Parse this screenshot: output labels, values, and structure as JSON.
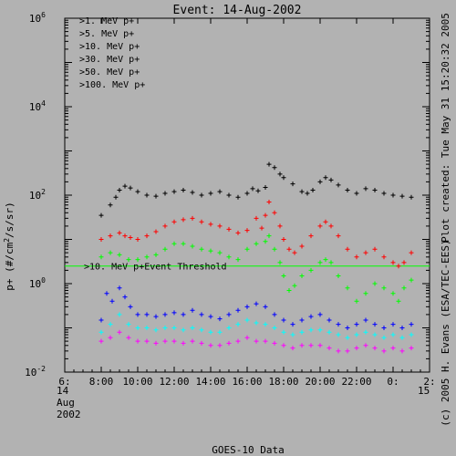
{
  "chart_data": {
    "type": "scatter",
    "title": "Event: 14-Aug-2002",
    "ylabel_main": "p+ (#/cm",
    "ylabel_sup": "2",
    "ylabel_tail": "/s/sr)",
    "bottom_label": "GOES-10 Data",
    "right_label_plot": "Plot created: Tue May 31 15:20:32 2005",
    "right_label_copyright": "(c) 2005 H. Evans (ESA/TEC-EES)",
    "date_labels": {
      "day1": "14",
      "month": "Aug",
      "year": "2002",
      "day2": "15"
    },
    "x_axis": {
      "unit": "hour",
      "min": 6,
      "max": 26,
      "ticks": [
        6,
        8,
        10,
        12,
        14,
        16,
        18,
        20,
        22,
        24,
        26
      ],
      "tick_labels": [
        "6:",
        "8:00",
        "10:00",
        "12:00",
        "14:00",
        "16:00",
        "18:00",
        "20:00",
        "22:00",
        "0:",
        "2:"
      ]
    },
    "y_axis": {
      "scale": "log",
      "min": 0.01,
      "max": 1000000,
      "tick_labels": [
        {
          "base": "10",
          "exp": "-2",
          "value": 0.01
        },
        {
          "base": "10",
          "exp": "0",
          "value": 1
        },
        {
          "base": "10",
          "exp": "2",
          "value": 100
        },
        {
          "base": "10",
          "exp": "4",
          "value": 10000
        },
        {
          "base": "10",
          "exp": "6",
          "value": 1000000
        }
      ]
    },
    "threshold": {
      "label": ">10. MeV p+Event Threshold",
      "value": 2.5,
      "color": "#00ff00"
    },
    "series": [
      {
        "name": ">1. MeV p+",
        "color": "#000000",
        "points": [
          [
            8,
            35
          ],
          [
            8.5,
            60
          ],
          [
            8.8,
            90
          ],
          [
            9,
            130
          ],
          [
            9.3,
            160
          ],
          [
            9.6,
            145
          ],
          [
            10,
            120
          ],
          [
            10.5,
            100
          ],
          [
            11,
            95
          ],
          [
            11.5,
            110
          ],
          [
            12,
            120
          ],
          [
            12.5,
            130
          ],
          [
            13,
            115
          ],
          [
            13.5,
            100
          ],
          [
            14,
            110
          ],
          [
            14.5,
            120
          ],
          [
            15,
            100
          ],
          [
            15.5,
            90
          ],
          [
            16,
            110
          ],
          [
            16.3,
            140
          ],
          [
            16.6,
            125
          ],
          [
            17,
            150
          ],
          [
            17.2,
            500
          ],
          [
            17.5,
            420
          ],
          [
            17.8,
            300
          ],
          [
            18,
            250
          ],
          [
            18.5,
            180
          ],
          [
            19,
            120
          ],
          [
            19.3,
            110
          ],
          [
            19.6,
            130
          ],
          [
            20,
            200
          ],
          [
            20.3,
            250
          ],
          [
            20.6,
            220
          ],
          [
            21,
            170
          ],
          [
            21.5,
            130
          ],
          [
            22,
            110
          ],
          [
            22.5,
            140
          ],
          [
            23,
            130
          ],
          [
            23.5,
            110
          ],
          [
            24,
            100
          ],
          [
            24.5,
            95
          ],
          [
            25,
            90
          ]
        ]
      },
      {
        "name": ">5. MeV p+",
        "color": "#ff0000",
        "points": [
          [
            8,
            10
          ],
          [
            8.5,
            12
          ],
          [
            9,
            14
          ],
          [
            9.3,
            12
          ],
          [
            9.6,
            11
          ],
          [
            10,
            10
          ],
          [
            10.5,
            12
          ],
          [
            11,
            15
          ],
          [
            11.5,
            20
          ],
          [
            12,
            25
          ],
          [
            12.5,
            28
          ],
          [
            13,
            30
          ],
          [
            13.5,
            25
          ],
          [
            14,
            22
          ],
          [
            14.5,
            20
          ],
          [
            15,
            17
          ],
          [
            15.5,
            14
          ],
          [
            16,
            16
          ],
          [
            16.5,
            30
          ],
          [
            16.8,
            18
          ],
          [
            17,
            35
          ],
          [
            17.2,
            70
          ],
          [
            17.5,
            40
          ],
          [
            17.8,
            20
          ],
          [
            18,
            10
          ],
          [
            18.3,
            6
          ],
          [
            18.6,
            5
          ],
          [
            19,
            7
          ],
          [
            19.5,
            12
          ],
          [
            20,
            20
          ],
          [
            20.3,
            25
          ],
          [
            20.6,
            20
          ],
          [
            21,
            12
          ],
          [
            21.5,
            6
          ],
          [
            22,
            4
          ],
          [
            22.5,
            5
          ],
          [
            23,
            6
          ],
          [
            23.5,
            4
          ],
          [
            24,
            3
          ],
          [
            24.3,
            2.5
          ],
          [
            24.6,
            3
          ],
          [
            25,
            5
          ]
        ]
      },
      {
        "name": ">10. MeV p+",
        "color": "#00ff00",
        "points": [
          [
            8,
            4
          ],
          [
            8.5,
            5
          ],
          [
            9,
            4.5
          ],
          [
            9.5,
            3.5
          ],
          [
            10,
            3.5
          ],
          [
            10.5,
            4
          ],
          [
            11,
            4.5
          ],
          [
            11.5,
            6
          ],
          [
            12,
            8
          ],
          [
            12.5,
            8
          ],
          [
            13,
            7
          ],
          [
            13.5,
            6
          ],
          [
            14,
            5.5
          ],
          [
            14.5,
            5
          ],
          [
            15,
            4
          ],
          [
            15.5,
            3.5
          ],
          [
            16,
            6
          ],
          [
            16.5,
            8
          ],
          [
            17,
            9
          ],
          [
            17.2,
            12
          ],
          [
            17.5,
            6
          ],
          [
            17.8,
            3
          ],
          [
            18,
            1.5
          ],
          [
            18.3,
            0.7
          ],
          [
            18.6,
            0.9
          ],
          [
            19,
            1.5
          ],
          [
            19.5,
            2
          ],
          [
            20,
            3
          ],
          [
            20.3,
            3.5
          ],
          [
            20.6,
            3
          ],
          [
            21,
            1.5
          ],
          [
            21.5,
            0.8
          ],
          [
            22,
            0.4
          ],
          [
            22.5,
            0.6
          ],
          [
            23,
            1
          ],
          [
            23.5,
            0.8
          ],
          [
            24,
            0.6
          ],
          [
            24.3,
            0.4
          ],
          [
            24.6,
            0.8
          ],
          [
            25,
            1.2
          ]
        ]
      },
      {
        "name": ">30. MeV p+",
        "color": "#0000ff",
        "points": [
          [
            8,
            0.15
          ],
          [
            8.3,
            0.6
          ],
          [
            8.6,
            0.4
          ],
          [
            9,
            0.8
          ],
          [
            9.3,
            0.5
          ],
          [
            9.6,
            0.3
          ],
          [
            10,
            0.2
          ],
          [
            10.5,
            0.2
          ],
          [
            11,
            0.18
          ],
          [
            11.5,
            0.2
          ],
          [
            12,
            0.22
          ],
          [
            12.5,
            0.2
          ],
          [
            13,
            0.25
          ],
          [
            13.5,
            0.2
          ],
          [
            14,
            0.18
          ],
          [
            14.5,
            0.16
          ],
          [
            15,
            0.2
          ],
          [
            15.5,
            0.25
          ],
          [
            16,
            0.3
          ],
          [
            16.5,
            0.35
          ],
          [
            17,
            0.3
          ],
          [
            17.5,
            0.2
          ],
          [
            18,
            0.15
          ],
          [
            18.5,
            0.12
          ],
          [
            19,
            0.15
          ],
          [
            19.5,
            0.18
          ],
          [
            20,
            0.2
          ],
          [
            20.5,
            0.15
          ],
          [
            21,
            0.12
          ],
          [
            21.5,
            0.1
          ],
          [
            22,
            0.12
          ],
          [
            22.5,
            0.15
          ],
          [
            23,
            0.12
          ],
          [
            23.5,
            0.1
          ],
          [
            24,
            0.12
          ],
          [
            24.5,
            0.1
          ],
          [
            25,
            0.12
          ]
        ]
      },
      {
        "name": ">50. MeV p+",
        "color": "#00ffff",
        "points": [
          [
            8,
            0.08
          ],
          [
            8.5,
            0.12
          ],
          [
            9,
            0.2
          ],
          [
            9.5,
            0.12
          ],
          [
            10,
            0.1
          ],
          [
            10.5,
            0.1
          ],
          [
            11,
            0.09
          ],
          [
            11.5,
            0.1
          ],
          [
            12,
            0.1
          ],
          [
            12.5,
            0.09
          ],
          [
            13,
            0.1
          ],
          [
            13.5,
            0.09
          ],
          [
            14,
            0.08
          ],
          [
            14.5,
            0.08
          ],
          [
            15,
            0.1
          ],
          [
            15.5,
            0.12
          ],
          [
            16,
            0.15
          ],
          [
            16.5,
            0.13
          ],
          [
            17,
            0.12
          ],
          [
            17.5,
            0.1
          ],
          [
            18,
            0.08
          ],
          [
            18.5,
            0.07
          ],
          [
            19,
            0.08
          ],
          [
            19.5,
            0.09
          ],
          [
            20,
            0.09
          ],
          [
            20.5,
            0.08
          ],
          [
            21,
            0.07
          ],
          [
            21.5,
            0.06
          ],
          [
            22,
            0.07
          ],
          [
            22.5,
            0.08
          ],
          [
            23,
            0.07
          ],
          [
            23.5,
            0.06
          ],
          [
            24,
            0.07
          ],
          [
            24.5,
            0.06
          ],
          [
            25,
            0.07
          ]
        ]
      },
      {
        "name": ">100. MeV p+",
        "color": "#ff00ff",
        "points": [
          [
            8,
            0.05
          ],
          [
            8.5,
            0.06
          ],
          [
            9,
            0.08
          ],
          [
            9.5,
            0.06
          ],
          [
            10,
            0.05
          ],
          [
            10.5,
            0.05
          ],
          [
            11,
            0.045
          ],
          [
            11.5,
            0.05
          ],
          [
            12,
            0.05
          ],
          [
            12.5,
            0.045
          ],
          [
            13,
            0.05
          ],
          [
            13.5,
            0.045
          ],
          [
            14,
            0.04
          ],
          [
            14.5,
            0.04
          ],
          [
            15,
            0.045
          ],
          [
            15.5,
            0.05
          ],
          [
            16,
            0.06
          ],
          [
            16.5,
            0.05
          ],
          [
            17,
            0.05
          ],
          [
            17.5,
            0.045
          ],
          [
            18,
            0.04
          ],
          [
            18.5,
            0.035
          ],
          [
            19,
            0.04
          ],
          [
            19.5,
            0.04
          ],
          [
            20,
            0.04
          ],
          [
            20.5,
            0.035
          ],
          [
            21,
            0.03
          ],
          [
            21.5,
            0.03
          ],
          [
            22,
            0.035
          ],
          [
            22.5,
            0.04
          ],
          [
            23,
            0.035
          ],
          [
            23.5,
            0.03
          ],
          [
            24,
            0.035
          ],
          [
            24.5,
            0.03
          ],
          [
            25,
            0.035
          ]
        ]
      }
    ]
  }
}
